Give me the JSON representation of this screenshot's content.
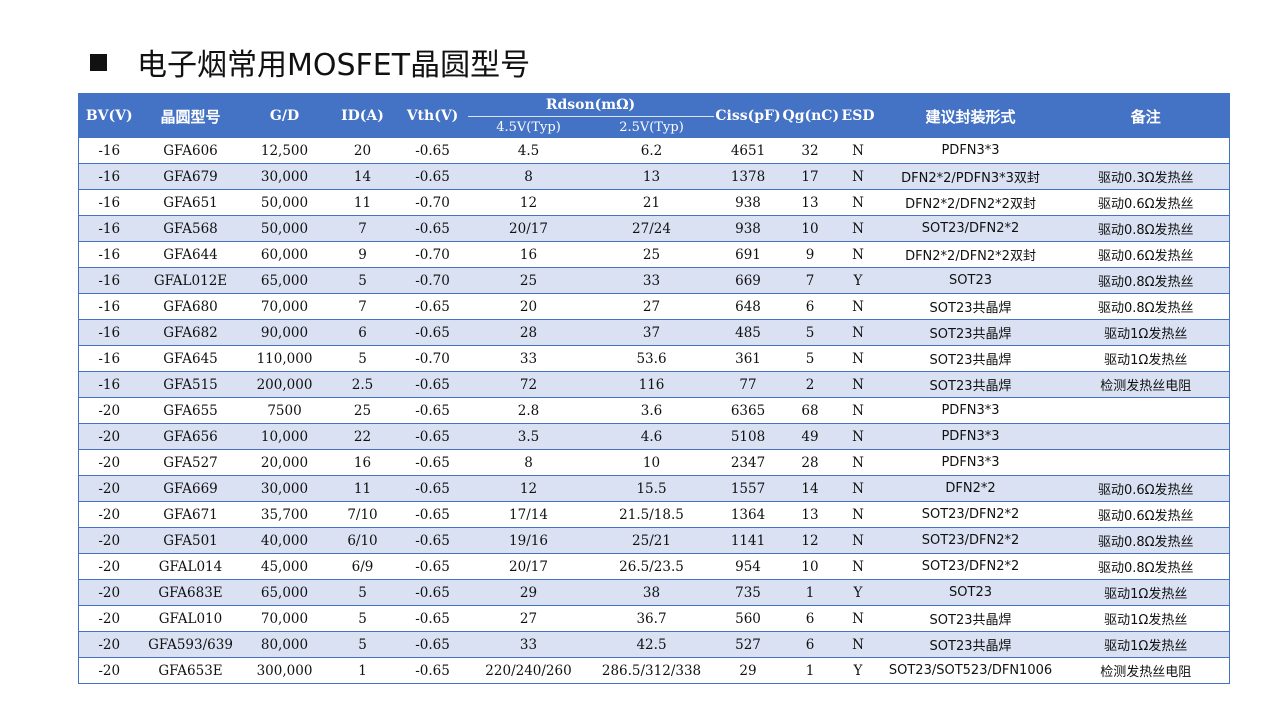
{
  "title": "电子烟常用MOSFET晶圆型号",
  "headers": {
    "bv": "BV(V)",
    "wafer": "晶圆型号",
    "gd": "G/D",
    "id": "ID(A)",
    "vth": "Vth(V)",
    "rdson": "Rdson(mΩ)",
    "rds45": "4.5V(Typ)",
    "rds25": "2.5V(Typ)",
    "ciss": "Ciss(pF)",
    "qg": "Qg(nC)",
    "esd": "ESD",
    "package": "建议封装形式",
    "note": "备注"
  },
  "rows": [
    [
      "-16",
      "GFA606",
      "12,500",
      "20",
      "-0.65",
      "4.5",
      "6.2",
      "4651",
      "32",
      "N",
      "PDFN3*3",
      ""
    ],
    [
      "-16",
      "GFA679",
      "30,000",
      "14",
      "-0.65",
      "8",
      "13",
      "1378",
      "17",
      "N",
      "DFN2*2/PDFN3*3双封",
      "驱动0.3Ω发热丝"
    ],
    [
      "-16",
      "GFA651",
      "50,000",
      "11",
      "-0.70",
      "12",
      "21",
      "938",
      "13",
      "N",
      "DFN2*2/DFN2*2双封",
      "驱动0.6Ω发热丝"
    ],
    [
      "-16",
      "GFA568",
      "50,000",
      "7",
      "-0.65",
      "20/17",
      "27/24",
      "938",
      "10",
      "N",
      "SOT23/DFN2*2",
      "驱动0.8Ω发热丝"
    ],
    [
      "-16",
      "GFA644",
      "60,000",
      "9",
      "-0.70",
      "16",
      "25",
      "691",
      "9",
      "N",
      "DFN2*2/DFN2*2双封",
      "驱动0.6Ω发热丝"
    ],
    [
      "-16",
      "GFAL012E",
      "65,000",
      "5",
      "-0.70",
      "25",
      "33",
      "669",
      "7",
      "Y",
      "SOT23",
      "驱动0.8Ω发热丝"
    ],
    [
      "-16",
      "GFA680",
      "70,000",
      "7",
      "-0.65",
      "20",
      "27",
      "648",
      "6",
      "N",
      "SOT23共晶焊",
      "驱动0.8Ω发热丝"
    ],
    [
      "-16",
      "GFA682",
      "90,000",
      "6",
      "-0.65",
      "28",
      "37",
      "485",
      "5",
      "N",
      "SOT23共晶焊",
      "驱动1Ω发热丝"
    ],
    [
      "-16",
      "GFA645",
      "110,000",
      "5",
      "-0.70",
      "33",
      "53.6",
      "361",
      "5",
      "N",
      "SOT23共晶焊",
      "驱动1Ω发热丝"
    ],
    [
      "-16",
      "GFA515",
      "200,000",
      "2.5",
      "-0.65",
      "72",
      "116",
      "77",
      "2",
      "N",
      "SOT23共晶焊",
      "检测发热丝电阻"
    ],
    [
      "-20",
      "GFA655",
      "7500",
      "25",
      "-0.65",
      "2.8",
      "3.6",
      "6365",
      "68",
      "N",
      "PDFN3*3",
      ""
    ],
    [
      "-20",
      "GFA656",
      "10,000",
      "22",
      "-0.65",
      "3.5",
      "4.6",
      "5108",
      "49",
      "N",
      "PDFN3*3",
      ""
    ],
    [
      "-20",
      "GFA527",
      "20,000",
      "16",
      "-0.65",
      "8",
      "10",
      "2347",
      "28",
      "N",
      "PDFN3*3",
      ""
    ],
    [
      "-20",
      "GFA669",
      "30,000",
      "11",
      "-0.65",
      "12",
      "15.5",
      "1557",
      "14",
      "N",
      "DFN2*2",
      "驱动0.6Ω发热丝"
    ],
    [
      "-20",
      "GFA671",
      "35,700",
      "7/10",
      "-0.65",
      "17/14",
      "21.5/18.5",
      "1364",
      "13",
      "N",
      "SOT23/DFN2*2",
      "驱动0.6Ω发热丝"
    ],
    [
      "-20",
      "GFA501",
      "40,000",
      "6/10",
      "-0.65",
      "19/16",
      "25/21",
      "1141",
      "12",
      "N",
      "SOT23/DFN2*2",
      "驱动0.8Ω发热丝"
    ],
    [
      "-20",
      "GFAL014",
      "45,000",
      "6/9",
      "-0.65",
      "20/17",
      "26.5/23.5",
      "954",
      "10",
      "N",
      "SOT23/DFN2*2",
      "驱动0.8Ω发热丝"
    ],
    [
      "-20",
      "GFA683E",
      "65,000",
      "5",
      "-0.65",
      "29",
      "38",
      "735",
      "1",
      "Y",
      "SOT23",
      "驱动1Ω发热丝"
    ],
    [
      "-20",
      "GFAL010",
      "70,000",
      "5",
      "-0.65",
      "27",
      "36.7",
      "560",
      "6",
      "N",
      "SOT23共晶焊",
      "驱动1Ω发热丝"
    ],
    [
      "-20",
      "GFA593/639",
      "80,000",
      "5",
      "-0.65",
      "33",
      "42.5",
      "527",
      "6",
      "N",
      "SOT23共晶焊",
      "驱动1Ω发热丝"
    ],
    [
      "-20",
      "GFA653E",
      "300,000",
      "1",
      "-0.65",
      "220/240/260",
      "286.5/312/338",
      "29",
      "1",
      "Y",
      "SOT23/SOT523/DFN1006",
      "检测发热丝电阻"
    ]
  ]
}
